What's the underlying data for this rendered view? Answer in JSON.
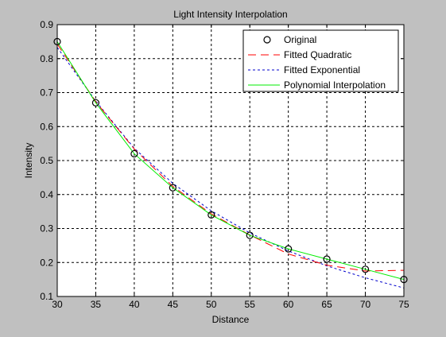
{
  "chart_data": {
    "type": "line",
    "title": "Light Intensity Interpolation",
    "xlabel": "Distance",
    "ylabel": "Intensity",
    "xlim": [
      30,
      75
    ],
    "ylim": [
      0.1,
      0.9
    ],
    "xticks": [
      "30",
      "35",
      "40",
      "45",
      "50",
      "55",
      "60",
      "65",
      "70",
      "75"
    ],
    "yticks": [
      "0.1",
      "0.2",
      "0.3",
      "0.4",
      "0.5",
      "0.6",
      "0.7",
      "0.8",
      "0.9"
    ],
    "grid": true,
    "legend_position": "top-right",
    "series": [
      {
        "name": "Original",
        "style": "markers",
        "marker": "circle",
        "color": "#000000",
        "x": [
          30,
          35,
          40,
          45,
          50,
          55,
          60,
          65,
          70,
          75
        ],
        "y": [
          0.85,
          0.67,
          0.52,
          0.42,
          0.34,
          0.28,
          0.24,
          0.21,
          0.18,
          0.15
        ]
      },
      {
        "name": "Fitted Quadratic",
        "style": "dashed",
        "color": "#ff0000",
        "x": [
          30,
          35,
          40,
          45,
          50,
          55,
          60,
          65,
          70,
          75
        ],
        "y": [
          0.843,
          0.673,
          0.534,
          0.424,
          0.343,
          0.281,
          0.225,
          0.192,
          0.175,
          0.177
        ]
      },
      {
        "name": "Fitted Exponential",
        "style": "dotted",
        "color": "#0000cc",
        "x": [
          30,
          35,
          40,
          45,
          50,
          55,
          60,
          65,
          70,
          75
        ],
        "y": [
          0.833,
          0.675,
          0.536,
          0.433,
          0.352,
          0.287,
          0.234,
          0.19,
          0.155,
          0.125
        ]
      },
      {
        "name": "Polynomial Interpolation",
        "style": "solid",
        "color": "#00ee00",
        "x": [
          30,
          35,
          40,
          45,
          50,
          55,
          60,
          65,
          70,
          75
        ],
        "y": [
          0.85,
          0.67,
          0.52,
          0.42,
          0.34,
          0.28,
          0.24,
          0.21,
          0.18,
          0.15
        ]
      }
    ]
  }
}
